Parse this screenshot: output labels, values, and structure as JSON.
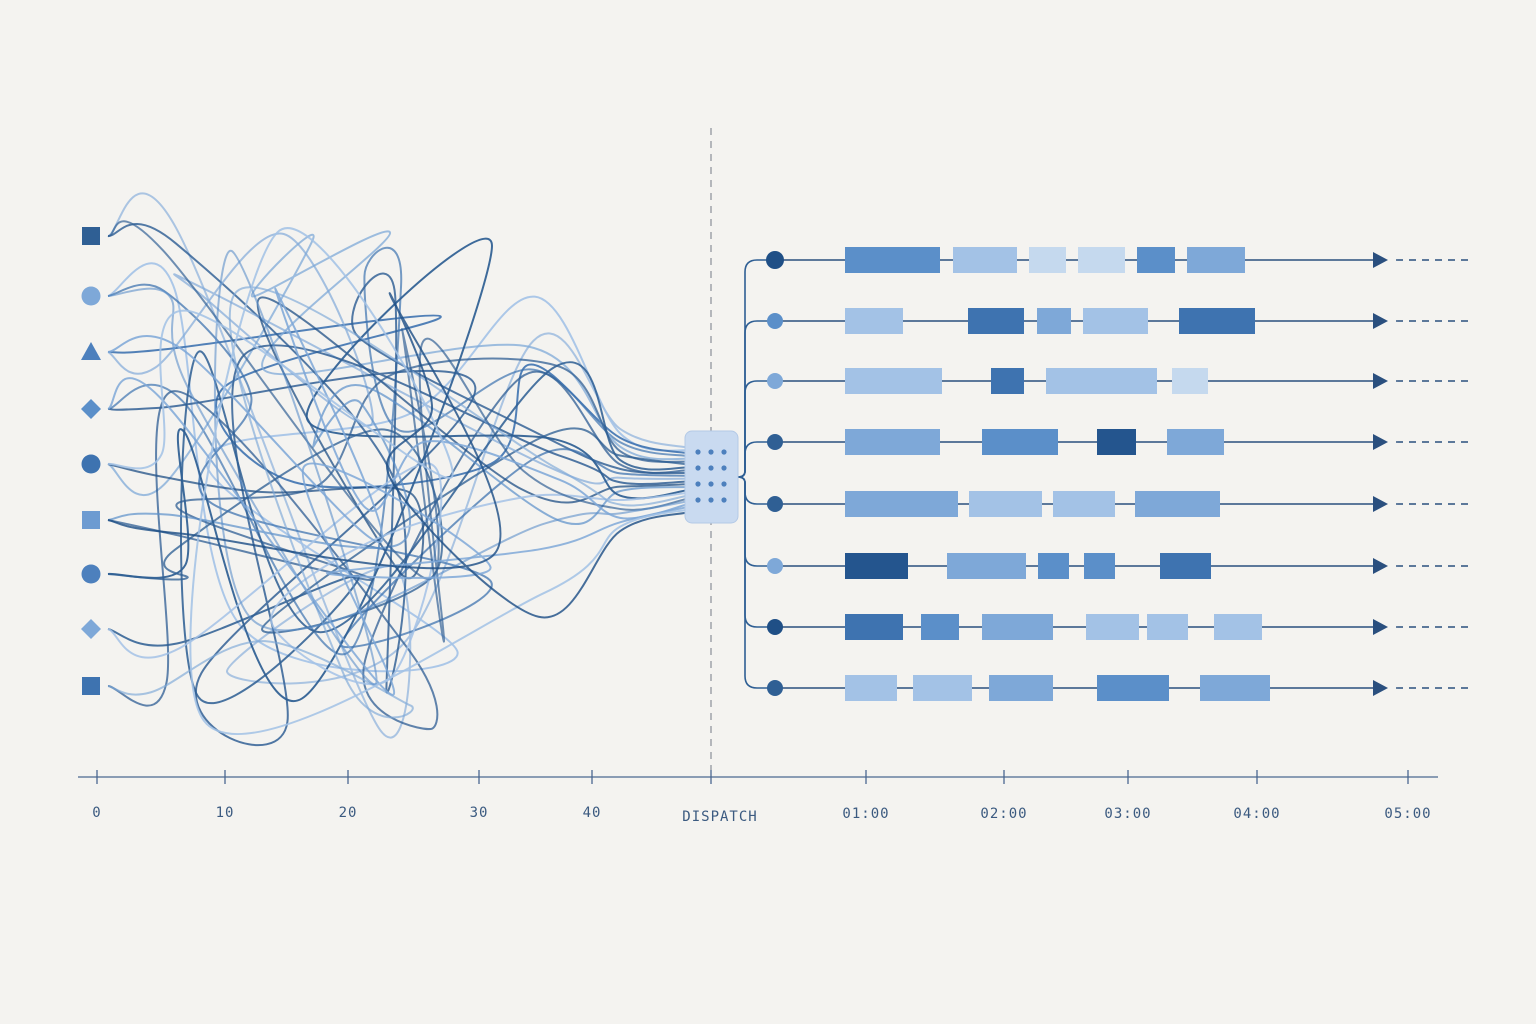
{
  "axis": {
    "ticks": [
      "0",
      "10",
      "20",
      "30",
      "40"
    ],
    "dispatch_label": "DISPATCH",
    "time_ticks": [
      "01:00",
      "02:00",
      "03:00",
      "04:00",
      "05:00"
    ]
  }
}
